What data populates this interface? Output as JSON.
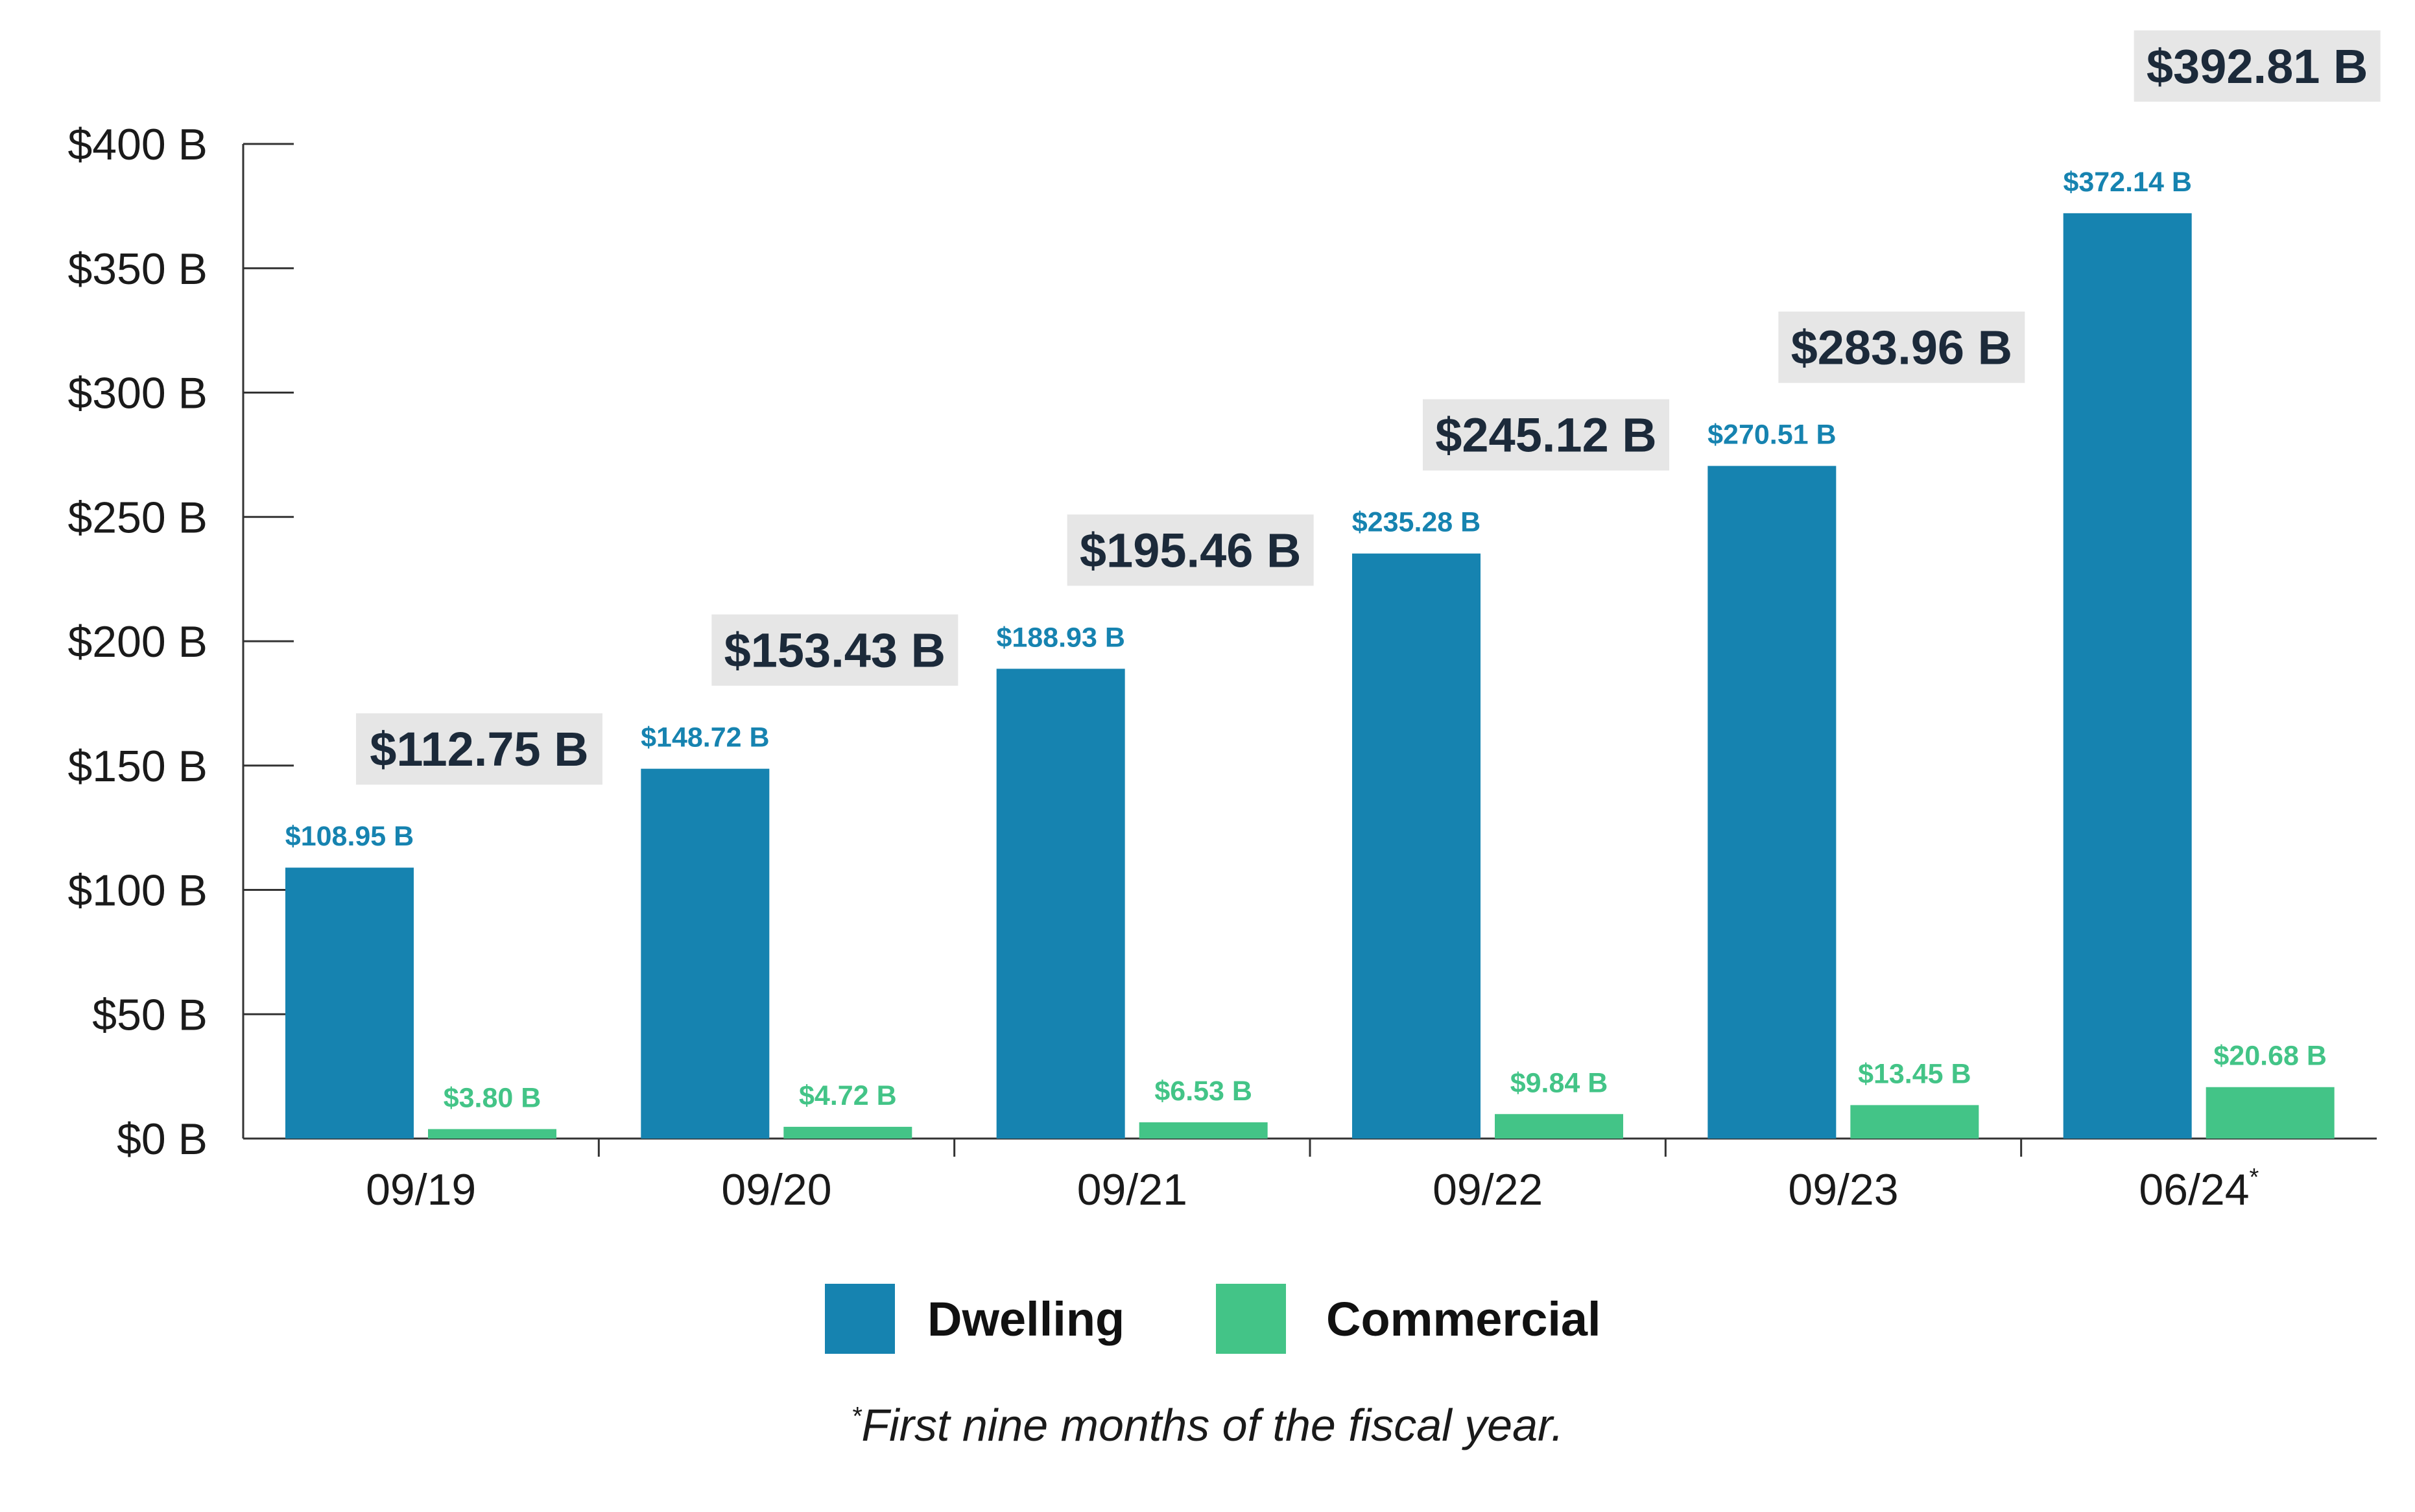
{
  "chart_data": {
    "type": "bar",
    "categories": [
      "09/19",
      "09/20",
      "09/21",
      "09/22",
      "09/23",
      "06/24"
    ],
    "category_footnote_marks": [
      "",
      "",
      "",
      "",
      "",
      "*"
    ],
    "series": [
      {
        "name": "Dwelling",
        "color": "#1683b0",
        "values": [
          108.95,
          148.72,
          188.93,
          235.28,
          270.51,
          372.14
        ],
        "labels": [
          "$108.95 B",
          "$148.72 B",
          "$188.93 B",
          "$235.28 B",
          "$270.51 B",
          "$372.14 B"
        ]
      },
      {
        "name": "Commercial",
        "color": "#43c487",
        "values": [
          3.8,
          4.72,
          6.53,
          9.84,
          13.45,
          20.68
        ],
        "labels": [
          "$3.80 B",
          "$4.72 B",
          "$6.53 B",
          "$9.84 B",
          "$13.45 B",
          "$20.68 B"
        ]
      }
    ],
    "totals": {
      "values": [
        112.75,
        153.43,
        195.46,
        245.12,
        283.96,
        392.81
      ],
      "labels": [
        "$112.75 B",
        "$153.43 B",
        "$195.46 B",
        "$245.12 B",
        "$283.96 B",
        "$392.81 B"
      ]
    },
    "yticks": [
      0,
      50,
      100,
      150,
      200,
      250,
      300,
      350,
      400
    ],
    "ytick_labels": [
      "$0 B",
      "$50 B",
      "$100 B",
      "$150 B",
      "$200 B",
      "$250 B",
      "$300 B",
      "$350 B",
      "$400 B"
    ],
    "ylim": [
      0,
      400
    ],
    "grid": false,
    "legend_position": "bottom-center",
    "value_label_colors": {
      "Dwelling": "#1683b0",
      "Commercial": "#43c487",
      "total_text": "#1c2a3a",
      "total_background": "#e6e6e6"
    }
  },
  "footnote": {
    "mark": "*",
    "text": "First nine months of the fiscal year."
  }
}
